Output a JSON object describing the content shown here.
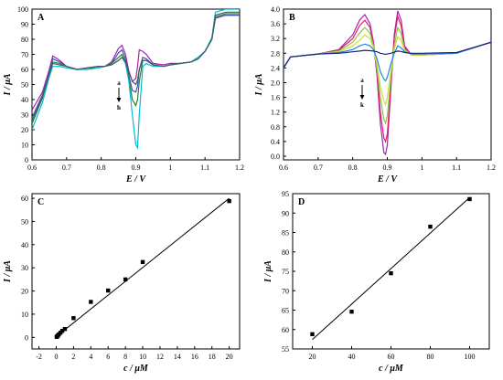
{
  "chart_data": [
    {
      "panel": "A",
      "type": "line",
      "xlabel": "E / V",
      "ylabel": "I / μA",
      "xlim": [
        0.6,
        1.2
      ],
      "ylim": [
        0,
        100
      ],
      "xticks": [
        0.6,
        0.7,
        0.8,
        0.9,
        1.0,
        1.1,
        1.2
      ],
      "yticks": [
        0,
        10,
        20,
        30,
        40,
        50,
        60,
        70,
        80,
        90,
        100
      ],
      "grid": false,
      "annotation_top": "a",
      "annotation_bottom": "h",
      "series": [
        {
          "color": "#9c27b0",
          "x": [
            0.6,
            0.63,
            0.65,
            0.66,
            0.68,
            0.7,
            0.73,
            0.76,
            0.79,
            0.81,
            0.83,
            0.85,
            0.86,
            0.87,
            0.88,
            0.89,
            0.9,
            0.905,
            0.91,
            0.92,
            0.93,
            0.95,
            0.98,
            1.0,
            1.03,
            1.06,
            1.08,
            1.1,
            1.12,
            1.13,
            1.16,
            1.2
          ],
          "y": [
            33,
            45,
            60,
            69,
            66,
            62,
            60,
            61,
            62,
            62,
            65,
            74,
            76,
            70,
            59,
            52,
            54,
            62,
            73,
            72,
            70,
            64,
            63,
            64,
            64,
            65,
            68,
            72,
            80,
            94,
            96,
            96
          ]
        },
        {
          "color": "#3f51b5",
          "x": [
            0.6,
            0.63,
            0.65,
            0.66,
            0.68,
            0.7,
            0.73,
            0.76,
            0.79,
            0.81,
            0.83,
            0.85,
            0.86,
            0.87,
            0.88,
            0.89,
            0.9,
            0.905,
            0.91,
            0.92,
            0.93,
            0.95,
            0.98,
            1.0,
            1.03,
            1.06,
            1.08,
            1.1,
            1.12,
            1.13,
            1.16,
            1.2
          ],
          "y": [
            28,
            43,
            58,
            67,
            65,
            62,
            60,
            61,
            62,
            62,
            64,
            71,
            73,
            67,
            56,
            46,
            45,
            49,
            60,
            68,
            67,
            63,
            62,
            63,
            64,
            65,
            67,
            72,
            80,
            94,
            96,
            96
          ]
        },
        {
          "color": "#2e7d32",
          "x": [
            0.6,
            0.63,
            0.65,
            0.66,
            0.68,
            0.7,
            0.73,
            0.76,
            0.79,
            0.81,
            0.83,
            0.85,
            0.86,
            0.87,
            0.88,
            0.89,
            0.9,
            0.905,
            0.91,
            0.92,
            0.93,
            0.95,
            0.98,
            1.0,
            1.03,
            1.06,
            1.08,
            1.1,
            1.12,
            1.13,
            1.16,
            1.2
          ],
          "y": [
            24,
            41,
            57,
            65,
            64,
            62,
            60,
            61,
            61,
            62,
            64,
            68,
            70,
            65,
            54,
            40,
            36,
            40,
            52,
            66,
            66,
            63,
            62,
            63,
            64,
            65,
            67,
            72,
            81,
            95,
            97,
            97
          ]
        },
        {
          "color": "#00bcd4",
          "x": [
            0.6,
            0.63,
            0.65,
            0.66,
            0.68,
            0.7,
            0.73,
            0.76,
            0.79,
            0.81,
            0.83,
            0.85,
            0.86,
            0.87,
            0.88,
            0.89,
            0.9,
            0.905,
            0.91,
            0.92,
            0.93,
            0.95,
            0.98,
            1.0,
            1.03,
            1.06,
            1.08,
            1.1,
            1.12,
            1.13,
            1.16,
            1.2
          ],
          "y": [
            20,
            38,
            55,
            62,
            62,
            61,
            60,
            60,
            61,
            62,
            63,
            66,
            68,
            64,
            52,
            30,
            10,
            8,
            30,
            62,
            64,
            62,
            62,
            63,
            64,
            65,
            68,
            72,
            81,
            98,
            100,
            100
          ]
        },
        {
          "color": "#455a64",
          "x": [
            0.6,
            0.63,
            0.65,
            0.66,
            0.68,
            0.7,
            0.73,
            0.76,
            0.79,
            0.81,
            0.83,
            0.85,
            0.86,
            0.87,
            0.88,
            0.89,
            0.9,
            0.905,
            0.91,
            0.92,
            0.93,
            0.95,
            0.98,
            1.0,
            1.03,
            1.06,
            1.08,
            1.1,
            1.12,
            1.13,
            1.16,
            1.2
          ],
          "y": [
            26,
            42,
            57,
            64,
            63,
            62,
            60,
            61,
            62,
            62,
            63,
            66,
            68,
            65,
            58,
            52,
            50,
            53,
            60,
            66,
            66,
            63,
            62,
            63,
            64,
            65,
            67,
            72,
            80,
            96,
            98,
            98
          ]
        }
      ]
    },
    {
      "panel": "B",
      "type": "line",
      "xlabel": "E / V",
      "ylabel": "I / μA",
      "xlim": [
        0.6,
        1.2
      ],
      "ylim": [
        -0.1,
        4.0
      ],
      "xticks": [
        0.6,
        0.7,
        0.8,
        0.9,
        1.0,
        1.1,
        1.2
      ],
      "yticks": [
        0,
        0.4,
        0.8,
        1.2,
        1.6,
        2.0,
        2.4,
        2.8,
        3.2,
        3.6,
        4.0
      ],
      "grid": false,
      "annotation_top": "a",
      "annotation_bottom": "k",
      "series": [
        {
          "color": "#9c27b0",
          "x": [
            0.6,
            0.62,
            0.7,
            0.76,
            0.8,
            0.82,
            0.835,
            0.85,
            0.86,
            0.87,
            0.88,
            0.89,
            0.895,
            0.9,
            0.91,
            0.92,
            0.93,
            0.94,
            0.95,
            0.97,
            1.0,
            1.1,
            1.2
          ],
          "y": [
            2.4,
            2.7,
            2.78,
            2.9,
            3.3,
            3.7,
            3.85,
            3.6,
            3.1,
            2.2,
            0.9,
            0.1,
            0.05,
            0.3,
            1.8,
            3.3,
            3.95,
            3.7,
            3.0,
            2.75,
            2.75,
            2.8,
            3.1
          ]
        },
        {
          "color": "#e91e63",
          "x": [
            0.6,
            0.62,
            0.7,
            0.76,
            0.8,
            0.82,
            0.835,
            0.85,
            0.86,
            0.87,
            0.88,
            0.89,
            0.895,
            0.9,
            0.91,
            0.92,
            0.93,
            0.94,
            0.95,
            0.97,
            1.0,
            1.1,
            1.2
          ],
          "y": [
            2.4,
            2.7,
            2.78,
            2.88,
            3.2,
            3.55,
            3.7,
            3.5,
            3.05,
            2.3,
            1.2,
            0.5,
            0.4,
            0.6,
            1.9,
            3.2,
            3.8,
            3.55,
            2.95,
            2.75,
            2.75,
            2.8,
            3.1
          ]
        },
        {
          "color": "#8bc34a",
          "x": [
            0.6,
            0.62,
            0.7,
            0.76,
            0.8,
            0.82,
            0.835,
            0.85,
            0.86,
            0.87,
            0.88,
            0.89,
            0.895,
            0.9,
            0.91,
            0.92,
            0.93,
            0.94,
            0.95,
            0.97,
            1.0,
            1.1,
            1.2
          ],
          "y": [
            2.4,
            2.7,
            2.78,
            2.86,
            3.1,
            3.35,
            3.5,
            3.35,
            3.0,
            2.4,
            1.6,
            1.0,
            0.9,
            1.1,
            2.1,
            3.0,
            3.5,
            3.35,
            2.9,
            2.75,
            2.75,
            2.8,
            3.1
          ]
        },
        {
          "color": "#cddc39",
          "x": [
            0.6,
            0.62,
            0.7,
            0.76,
            0.8,
            0.82,
            0.835,
            0.85,
            0.86,
            0.87,
            0.88,
            0.89,
            0.895,
            0.9,
            0.91,
            0.92,
            0.93,
            0.94,
            0.95,
            0.97,
            1.0,
            1.1,
            1.2
          ],
          "y": [
            2.4,
            2.7,
            2.78,
            2.84,
            3.0,
            3.15,
            3.3,
            3.2,
            2.95,
            2.5,
            1.9,
            1.5,
            1.4,
            1.6,
            2.3,
            2.9,
            3.25,
            3.15,
            2.88,
            2.75,
            2.75,
            2.8,
            3.1
          ]
        },
        {
          "color": "#1e88e5",
          "x": [
            0.6,
            0.62,
            0.7,
            0.76,
            0.8,
            0.82,
            0.835,
            0.85,
            0.86,
            0.87,
            0.88,
            0.89,
            0.895,
            0.9,
            0.91,
            0.92,
            0.93,
            0.94,
            0.95,
            0.97,
            1.0,
            1.1,
            1.2
          ],
          "y": [
            2.4,
            2.7,
            2.78,
            2.82,
            2.9,
            3.0,
            3.05,
            3.0,
            2.9,
            2.65,
            2.3,
            2.1,
            2.05,
            2.15,
            2.5,
            2.8,
            3.0,
            2.95,
            2.84,
            2.78,
            2.78,
            2.8,
            3.1
          ]
        },
        {
          "color": "#1a237e",
          "x": [
            0.6,
            0.62,
            0.7,
            0.76,
            0.8,
            0.82,
            0.835,
            0.85,
            0.86,
            0.87,
            0.88,
            0.89,
            0.895,
            0.9,
            0.91,
            0.92,
            0.93,
            0.94,
            0.95,
            0.97,
            1.0,
            1.1,
            1.2
          ],
          "y": [
            2.4,
            2.7,
            2.78,
            2.8,
            2.84,
            2.86,
            2.88,
            2.87,
            2.86,
            2.84,
            2.8,
            2.78,
            2.77,
            2.78,
            2.8,
            2.83,
            2.86,
            2.85,
            2.82,
            2.8,
            2.8,
            2.82,
            3.1
          ]
        }
      ]
    },
    {
      "panel": "C",
      "type": "scatter",
      "xlabel": "c / μM",
      "ylabel": "I / μA",
      "xlim": [
        -2.8,
        21.2
      ],
      "ylim": [
        -5,
        62
      ],
      "xticks": [
        -2,
        0,
        2,
        4,
        6,
        8,
        10,
        12,
        14,
        16,
        18,
        20
      ],
      "xticklabels": [
        "-2",
        "0",
        "2",
        "4",
        "6",
        "8",
        "10",
        "12",
        "14",
        "16",
        "18",
        "20"
      ],
      "yticks": [
        0,
        10,
        20,
        30,
        40,
        50,
        60
      ],
      "grid": false,
      "points": {
        "x": [
          0.05,
          0.1,
          0.2,
          0.3,
          0.5,
          0.7,
          1.0,
          2.0,
          4.0,
          6.0,
          8.0,
          10.0,
          20.0
        ],
        "y": [
          0.2,
          0.4,
          0.8,
          1.3,
          2.0,
          2.8,
          3.6,
          8.3,
          15.3,
          20.2,
          25.0,
          32.5,
          58.8
        ]
      },
      "fit_line": {
        "x": [
          0,
          20
        ],
        "y": [
          0.3,
          60.0
        ]
      }
    },
    {
      "panel": "D",
      "type": "scatter",
      "xlabel": "c / μM",
      "ylabel": "I / μA",
      "xlim": [
        10,
        110
      ],
      "ylim": [
        55,
        95
      ],
      "xticks": [
        20,
        40,
        60,
        80,
        100
      ],
      "yticks": [
        55,
        60,
        65,
        70,
        75,
        80,
        85,
        90,
        95
      ],
      "grid": false,
      "points": {
        "x": [
          20,
          40,
          60,
          80,
          100
        ],
        "y": [
          58.8,
          64.6,
          74.5,
          86.5,
          93.6
        ]
      },
      "fit_line": {
        "x": [
          20,
          100
        ],
        "y": [
          57.4,
          94.0
        ]
      }
    }
  ]
}
